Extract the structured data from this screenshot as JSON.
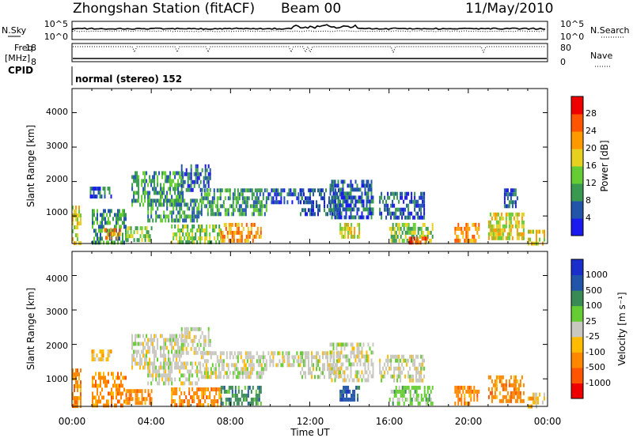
{
  "header": {
    "station": "Zhongshan Station (fitACF)",
    "beam": "Beam 00",
    "date": "11/May/2010"
  },
  "status_panels": {
    "noise": {
      "left_label": "N.Sky",
      "left_ticks": [
        "10^5",
        "10^0"
      ],
      "right_label": "N.Search",
      "right_ticks": [
        "10^5",
        "10^0"
      ]
    },
    "freq": {
      "left_label_1": "Freq.",
      "left_label_2": "[MHz]",
      "left_ticks": [
        "18",
        "8"
      ],
      "right_label": "Nave",
      "right_ticks": [
        "80",
        "0"
      ]
    },
    "cpid": {
      "label": "CPID",
      "text": "normal (stereo) 152"
    }
  },
  "colors": {
    "power": [
      "#1a1aee",
      "#2255aa",
      "#3a9950",
      "#66cc33",
      "#e8d020",
      "#ff9900",
      "#ff5500",
      "#ee0000"
    ],
    "velocity": [
      "#ee0000",
      "#ff5500",
      "#ff8800",
      "#ffbb00",
      "#c8c8c0",
      "#66cc33",
      "#3a8a55",
      "#2255aa",
      "#1a2ecc"
    ]
  },
  "chart_data": [
    {
      "type": "heatmap",
      "panel": "power",
      "xlabel": "",
      "ylabel": "Slant Range [km]",
      "yticks": [
        "1000",
        "2000",
        "3000",
        "4000"
      ],
      "ylim": [
        200,
        4700
      ],
      "xlim_hours": [
        0,
        24
      ],
      "colorbar": {
        "label": "Power [dB]",
        "ticks": [
          "4",
          "8",
          "12",
          "16",
          "20",
          "24",
          "28"
        ],
        "range": [
          0,
          32
        ]
      },
      "echo_regions": [
        {
          "t0": 0.0,
          "t1": 0.4,
          "r0": 250,
          "r1": 1300,
          "level": 22
        },
        {
          "t0": 0.9,
          "t1": 2.0,
          "r0": 1550,
          "r1": 1850,
          "level": 8
        },
        {
          "t0": 1.0,
          "t1": 2.7,
          "r0": 250,
          "r1": 1200,
          "level": 14
        },
        {
          "t0": 1.6,
          "t1": 2.4,
          "r0": 350,
          "r1": 650,
          "level": 24
        },
        {
          "t0": 2.7,
          "t1": 4.0,
          "r0": 250,
          "r1": 700,
          "level": 18
        },
        {
          "t0": 3.0,
          "t1": 5.6,
          "r0": 1300,
          "r1": 2300,
          "level": 12
        },
        {
          "t0": 3.8,
          "t1": 6.5,
          "r0": 900,
          "r1": 1500,
          "level": 14
        },
        {
          "t0": 5.0,
          "t1": 7.5,
          "r0": 250,
          "r1": 750,
          "level": 18
        },
        {
          "t0": 5.5,
          "t1": 7.0,
          "r0": 1800,
          "r1": 2500,
          "level": 8
        },
        {
          "t0": 6.5,
          "t1": 9.8,
          "r0": 1000,
          "r1": 1800,
          "level": 14
        },
        {
          "t0": 7.5,
          "t1": 9.5,
          "r0": 300,
          "r1": 800,
          "level": 26
        },
        {
          "t0": 9.8,
          "t1": 11.7,
          "r0": 1450,
          "r1": 1800,
          "level": 8
        },
        {
          "t0": 11.5,
          "t1": 13.5,
          "r0": 1100,
          "r1": 1800,
          "level": 8
        },
        {
          "t0": 13.0,
          "t1": 15.2,
          "r0": 950,
          "r1": 2050,
          "level": 10
        },
        {
          "t0": 13.5,
          "t1": 14.5,
          "r0": 350,
          "r1": 800,
          "level": 22
        },
        {
          "t0": 15.5,
          "t1": 17.8,
          "r0": 950,
          "r1": 1700,
          "level": 9
        },
        {
          "t0": 16.0,
          "t1": 18.2,
          "r0": 300,
          "r1": 800,
          "level": 18
        },
        {
          "t0": 17.0,
          "t1": 17.9,
          "r0": 250,
          "r1": 400,
          "level": 28
        },
        {
          "t0": 19.3,
          "t1": 20.5,
          "r0": 250,
          "r1": 800,
          "level": 24
        },
        {
          "t0": 21.0,
          "t1": 22.8,
          "r0": 300,
          "r1": 1100,
          "level": 22
        },
        {
          "t0": 21.8,
          "t1": 22.5,
          "r0": 1300,
          "r1": 1800,
          "level": 8
        },
        {
          "t0": 23.0,
          "t1": 23.8,
          "r0": 250,
          "r1": 600,
          "level": 20
        }
      ]
    },
    {
      "type": "heatmap",
      "panel": "velocity",
      "xlabel": "Time UT",
      "ylabel": "Slant Range [km]",
      "yticks": [
        "1000",
        "2000",
        "3000",
        "4000"
      ],
      "ylim": [
        200,
        4700
      ],
      "xticks": [
        "00:00",
        "04:00",
        "08:00",
        "12:00",
        "16:00",
        "20:00",
        "00:00"
      ],
      "xlim_hours": [
        0,
        24
      ],
      "colorbar": {
        "label": "Velocity [m s⁻¹]",
        "ticks": [
          "-1000",
          "-500",
          "-100",
          "-25",
          "25",
          "100",
          "500",
          "1000"
        ]
      },
      "echo_regions": [
        {
          "t0": 0.0,
          "t1": 0.4,
          "r0": 250,
          "r1": 1300,
          "level": 2
        },
        {
          "t0": 0.9,
          "t1": 2.0,
          "r0": 1550,
          "r1": 1850,
          "level": 3
        },
        {
          "t0": 1.0,
          "t1": 2.7,
          "r0": 250,
          "r1": 1200,
          "level": 2
        },
        {
          "t0": 2.7,
          "t1": 4.0,
          "r0": 250,
          "r1": 700,
          "level": 2
        },
        {
          "t0": 3.0,
          "t1": 5.6,
          "r0": 1300,
          "r1": 2300,
          "level": 4
        },
        {
          "t0": 3.8,
          "t1": 6.5,
          "r0": 900,
          "r1": 1500,
          "level": 4
        },
        {
          "t0": 5.0,
          "t1": 7.5,
          "r0": 250,
          "r1": 750,
          "level": 2
        },
        {
          "t0": 5.5,
          "t1": 7.0,
          "r0": 1800,
          "r1": 2500,
          "level": 4
        },
        {
          "t0": 6.5,
          "t1": 9.8,
          "r0": 1000,
          "r1": 1800,
          "level": 4
        },
        {
          "t0": 7.5,
          "t1": 9.5,
          "r0": 300,
          "r1": 800,
          "level": 6
        },
        {
          "t0": 9.8,
          "t1": 11.7,
          "r0": 1450,
          "r1": 1800,
          "level": 4
        },
        {
          "t0": 11.5,
          "t1": 13.5,
          "r0": 1100,
          "r1": 1800,
          "level": 4
        },
        {
          "t0": 13.0,
          "t1": 15.2,
          "r0": 950,
          "r1": 2050,
          "level": 4
        },
        {
          "t0": 13.5,
          "t1": 14.5,
          "r0": 350,
          "r1": 800,
          "level": 7
        },
        {
          "t0": 15.5,
          "t1": 17.8,
          "r0": 950,
          "r1": 1700,
          "level": 4
        },
        {
          "t0": 16.0,
          "t1": 18.2,
          "r0": 300,
          "r1": 800,
          "level": 5
        },
        {
          "t0": 19.3,
          "t1": 20.5,
          "r0": 250,
          "r1": 800,
          "level": 2
        },
        {
          "t0": 21.0,
          "t1": 22.8,
          "r0": 300,
          "r1": 1100,
          "level": 2
        },
        {
          "t0": 23.0,
          "t1": 23.8,
          "r0": 250,
          "r1": 600,
          "level": 3
        }
      ]
    }
  ]
}
